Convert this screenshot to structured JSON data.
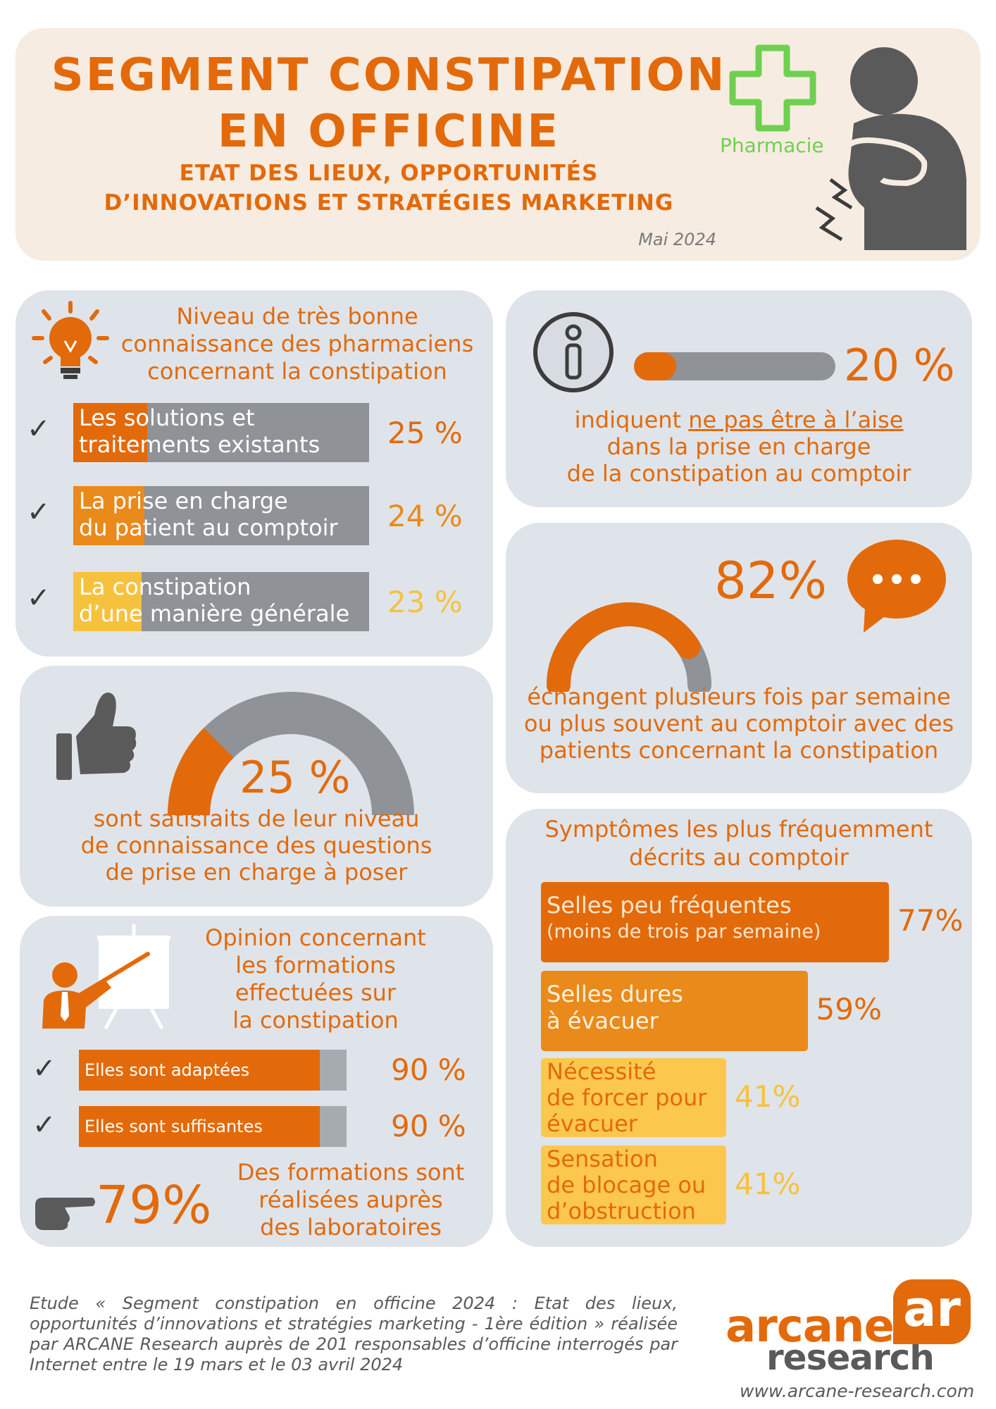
{
  "header": {
    "title_line1": "SEGMENT CONSTIPATION",
    "title_line2": "EN OFFICINE",
    "subtitle_line1": "ETAT DES LIEUX, OPPORTUNITÉS",
    "subtitle_line2": "D’INNOVATIONS ET STRATÉGIES MARKETING",
    "date": "Mai 2024",
    "pharmacy_label": "Pharmacie"
  },
  "knowledge": {
    "title_line1": "Niveau de très bonne",
    "title_line2": "connaissance des pharmaciens",
    "title_line3": "concernant la constipation",
    "items": [
      {
        "label_line1": "Les solutions et",
        "label_line2": "traitements existants",
        "value": 25,
        "value_label": "25 %",
        "color": "#e36a0a"
      },
      {
        "label_line1": "La prise en charge",
        "label_line2": "du patient au comptoir",
        "value": 24,
        "value_label": "24 %",
        "color": "#ea8a1a"
      },
      {
        "label_line1": "La constipation",
        "label_line2": "d’une manière générale",
        "value": 23,
        "value_label": "23 %",
        "color": "#f6c23e"
      }
    ]
  },
  "discomfort": {
    "value": 20,
    "value_label": "20 %",
    "text_line1_pre": "indiquent ",
    "text_line1_underlined": "ne pas être à l’aise",
    "text_line2": "dans la prise en charge",
    "text_line3": "de la constipation au comptoir"
  },
  "exchange": {
    "value": 82,
    "value_label": "82%",
    "text_line1": "échangent plusieurs fois par semaine",
    "text_line2": "ou plus souvent au comptoir avec des",
    "text_line3": "patients concernant la constipation"
  },
  "satisfaction": {
    "value": 25,
    "value_label": "25 %",
    "text_line1": "sont satisfaits de leur niveau",
    "text_line2": "de connaissance des questions",
    "text_line3": "de prise en charge à poser"
  },
  "training": {
    "title_line1": "Opinion concernant",
    "title_line2": "les formations",
    "title_line3": "effectuées sur",
    "title_line4": "la constipation",
    "items": [
      {
        "label": "Elles sont adaptées",
        "value": 90,
        "value_label": "90 %"
      },
      {
        "label": "Elles sont suffisantes",
        "value": 90,
        "value_label": "90 %"
      }
    ],
    "lab_value_label": "79%",
    "lab_text_line1": "Des formations sont",
    "lab_text_line2": "réalisées auprès",
    "lab_text_line3": "des laboratoires"
  },
  "symptoms": {
    "title_line1": "Symptômes les plus fréquemment",
    "title_line2": "décrits au comptoir",
    "items": [
      {
        "label_line1": "Selles peu fréquentes",
        "label_line2": "(moins de trois par semaine)",
        "value": 77,
        "value_label": "77%",
        "color": "#e36a0a",
        "text_color": "#ffe6cc"
      },
      {
        "label_line1": "Selles dures",
        "label_line2": "à évacuer",
        "label_line3": "",
        "value": 59,
        "value_label": "59%",
        "color": "#ea8a1a",
        "text_color": "#fff1de"
      },
      {
        "label_line1": "Nécessité",
        "label_line2": "de forcer pour",
        "label_line3": "évacuer",
        "value": 41,
        "value_label": "41%",
        "color": "#fbc74d",
        "text_color": "#e36a0a"
      },
      {
        "label_line1": "Sensation",
        "label_line2": "de blocage ou",
        "label_line3": "d’obstruction",
        "value": 41,
        "value_label": "41%",
        "color": "#fbc74d",
        "text_color": "#e36a0a"
      }
    ]
  },
  "footer": {
    "text": "Etude « Segment constipation en officine 2024 : Etat des lieux, opportunités d’innovations et stratégies marketing - 1ère édition » réalisée par ARCANE Research auprès de 201 responsables d’officine interrogés par Internet entre le 19 mars et le 03 avril 2024",
    "brand_line1": "arcane",
    "brand_line2": "research",
    "brand_mark": "ar",
    "website": "www.arcane-research.com"
  },
  "colors": {
    "orange": "#e36a0a",
    "orange_mid": "#ea8a1a",
    "yellow": "#f6c23e",
    "grey": "#8f9296",
    "panel": "#dfe4ea",
    "green": "#6fd04f"
  }
}
